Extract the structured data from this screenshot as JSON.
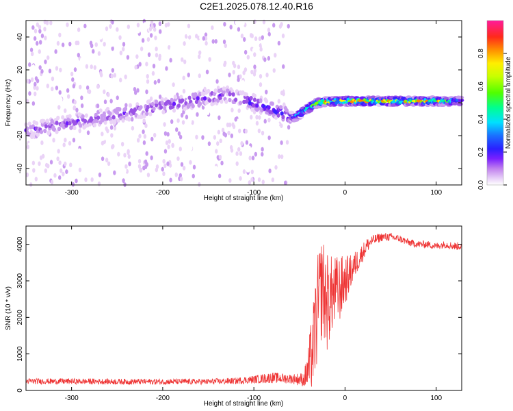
{
  "title": "C2E1.2025.078.12.40.R16",
  "colors": {
    "snr_line": "#ee3333",
    "spectrogram_palette": [
      "#ffffff",
      "#ead3f7",
      "#c89aef",
      "#9b52e6",
      "#6a18ff",
      "#3a20ff",
      "#1a6cff",
      "#00d8ff",
      "#00ff90",
      "#7dff00",
      "#ffee00",
      "#ff8a00",
      "#ff1a1a",
      "#ff1a9a"
    ]
  },
  "chart_data": [
    {
      "type": "heatmap",
      "xlabel": "Height of straight line (km)",
      "ylabel": "Frequency (Hz)",
      "xlim": [
        -350,
        128
      ],
      "ylim": [
        -50,
        50
      ],
      "xticks": [
        -300,
        -200,
        -100,
        0,
        100
      ],
      "yticks": [
        -40,
        -20,
        0,
        20,
        40
      ],
      "colorbar": {
        "label": "Normalized spectral amplitude",
        "range": [
          0,
          1
        ],
        "ticks": [
          0.0,
          0.2,
          0.4,
          0.6,
          0.8
        ]
      },
      "ridge": {
        "description_points_x": [
          -350,
          -130,
          -100,
          -70,
          -55,
          -45,
          -30,
          -10,
          20,
          100,
          128
        ],
        "description_points_y": [
          -17,
          5,
          0,
          -6,
          -9,
          -5,
          0,
          1,
          1,
          1,
          1
        ],
        "peak_values": [
          0.3,
          0.35,
          0.45,
          0.5,
          0.55,
          0.75,
          0.9,
          1.0,
          0.95,
          0.9,
          0.55
        ]
      }
    },
    {
      "type": "line",
      "xlabel": "Height of straight line (km)",
      "ylabel": "SNR (10 * v/v)",
      "xlim": [
        -350,
        128
      ],
      "ylim": [
        0,
        4500
      ],
      "xticks": [
        -300,
        -200,
        -100,
        0,
        100
      ],
      "yticks": [
        0,
        1000,
        2000,
        3000,
        4000
      ],
      "series": [
        {
          "x": [
            -350,
            -300,
            -250,
            -200,
            -150,
            -120,
            -100,
            -80,
            -60,
            -45,
            -40,
            -35,
            -30,
            -25,
            -20,
            -15,
            -10,
            -5,
            0,
            5,
            10,
            15,
            20,
            25,
            30,
            40,
            50,
            60,
            70,
            80,
            90,
            100,
            110,
            120,
            128
          ],
          "y": [
            250,
            250,
            240,
            240,
            240,
            260,
            300,
            350,
            320,
            300,
            600,
            1200,
            2200,
            2900,
            2400,
            2600,
            2700,
            2800,
            3000,
            3200,
            3400,
            3600,
            3800,
            4000,
            4100,
            4200,
            4200,
            4150,
            4050,
            4000,
            4000,
            3950,
            4000,
            3950,
            3950
          ],
          "noise_amplitude": [
            80,
            80,
            80,
            80,
            80,
            90,
            110,
            150,
            130,
            200,
            700,
            1200,
            1500,
            1400,
            1400,
            1100,
            1000,
            900,
            700,
            500,
            400,
            300,
            250,
            200,
            150,
            120,
            110,
            100,
            100,
            100,
            100,
            100,
            100,
            110,
            110
          ]
        }
      ]
    }
  ]
}
